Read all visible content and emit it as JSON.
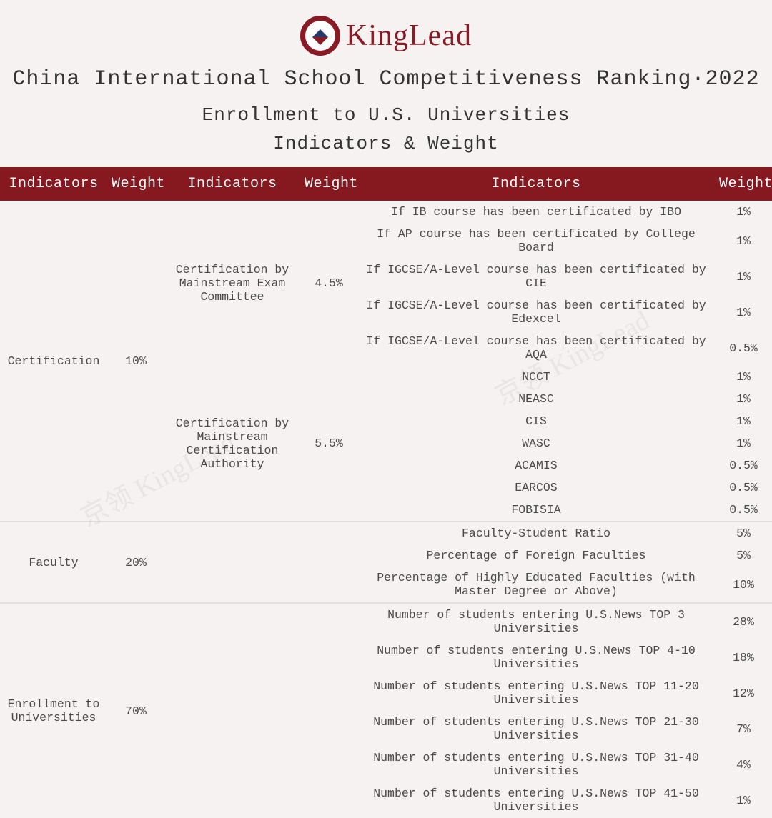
{
  "brand": "KingLead",
  "title": "China International School Competitiveness Ranking·2022",
  "subtitle": "Enrollment to U.S. Universities",
  "subtitle2": "Indicators & Weight",
  "watermark": "京领 KingLead",
  "colors": {
    "header_bg": "#861820",
    "header_text": "#ffffff",
    "page_bg": "#f6f2f2",
    "brand_text": "#8a1a24",
    "body_text": "#4a4a4a",
    "divider": "#e4dedd"
  },
  "table": {
    "headers": [
      "Indicators",
      "Weight",
      "Indicators",
      "Weight",
      "Indicators",
      "Weight"
    ],
    "groups": [
      {
        "label": "Certification",
        "weight": "10%",
        "subgroups": [
          {
            "label": "Certification by Mainstream Exam Committee",
            "weight": "4.5%",
            "rows": [
              {
                "label": "If IB course has been certificated by IBO",
                "weight": "1%"
              },
              {
                "label": "If AP course has been certificated by College Board",
                "weight": "1%"
              },
              {
                "label": "If IGCSE/A-Level course has been certificated by CIE",
                "weight": "1%"
              },
              {
                "label": "If IGCSE/A-Level course has been certificated by Edexcel",
                "weight": "1%"
              },
              {
                "label": "If IGCSE/A-Level course has been certificated by AQA",
                "weight": "0.5%"
              }
            ]
          },
          {
            "label": "Certification by Mainstream Certification Authority",
            "weight": "5.5%",
            "rows": [
              {
                "label": "NCCT",
                "weight": "1%"
              },
              {
                "label": "NEASC",
                "weight": "1%"
              },
              {
                "label": "CIS",
                "weight": "1%"
              },
              {
                "label": "WASC",
                "weight": "1%"
              },
              {
                "label": "ACAMIS",
                "weight": "0.5%"
              },
              {
                "label": "EARCOS",
                "weight": "0.5%"
              },
              {
                "label": "FOBISIA",
                "weight": "0.5%"
              }
            ]
          }
        ]
      },
      {
        "label": "Faculty",
        "weight": "20%",
        "subgroups": [
          {
            "label": "",
            "weight": "",
            "rows": [
              {
                "label": "Faculty-Student Ratio",
                "weight": "5%"
              },
              {
                "label": "Percentage of Foreign Faculties",
                "weight": "5%"
              },
              {
                "label": "Percentage of Highly Educated Faculties (with Master Degree or Above)",
                "weight": "10%"
              }
            ]
          }
        ]
      },
      {
        "label": "Enrollment to Universities",
        "weight": "70%",
        "subgroups": [
          {
            "label": "",
            "weight": "",
            "rows": [
              {
                "label": "Number of students entering U.S.News TOP 3 Universities",
                "weight": "28%"
              },
              {
                "label": "Number of students entering U.S.News TOP 4-10 Universities",
                "weight": "18%"
              },
              {
                "label": "Number of students entering U.S.News TOP 11-20 Universities",
                "weight": "12%"
              },
              {
                "label": "Number of students entering U.S.News TOP 21-30 Universities",
                "weight": "7%"
              },
              {
                "label": "Number of students entering U.S.News TOP 31-40 Universities",
                "weight": "4%"
              },
              {
                "label": "Number of students entering U.S.News TOP 41-50 Universities",
                "weight": "1%"
              }
            ]
          }
        ]
      }
    ]
  }
}
